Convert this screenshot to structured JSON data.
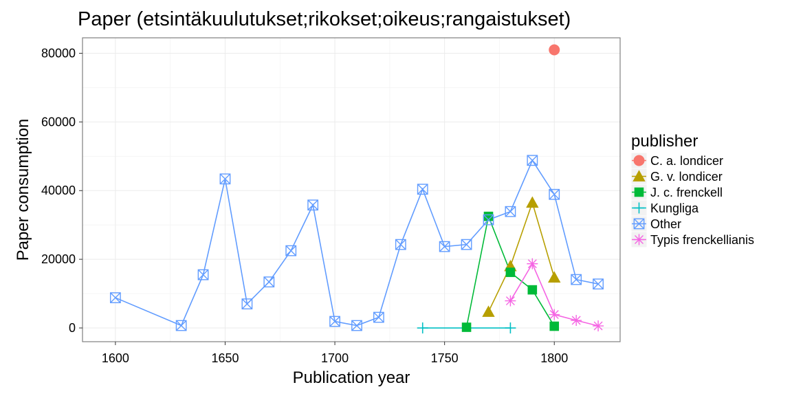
{
  "chart_data": {
    "type": "line",
    "title": "Paper (etsintäkuulutukset;rikokset;oikeus;rangaistukset)",
    "xlabel": "Publication year",
    "ylabel": "Paper consumption",
    "xlim": [
      1585,
      1830
    ],
    "ylim": [
      -4000,
      84500
    ],
    "x_ticks": [
      1600,
      1650,
      1700,
      1750,
      1800
    ],
    "y_ticks": [
      0,
      20000,
      40000,
      60000,
      80000
    ],
    "x_tick_labels": [
      "1600",
      "1650",
      "1700",
      "1750",
      "1800"
    ],
    "y_tick_labels": [
      "0",
      "20000",
      "40000",
      "60000",
      "80000"
    ],
    "grid": true,
    "legend": {
      "title": "publisher",
      "placement": "right"
    },
    "series": [
      {
        "name": "C. a. londicer",
        "color": "#F8766D",
        "shape": "circle",
        "points": [
          [
            1800,
            81000
          ]
        ]
      },
      {
        "name": "G. v. londicer",
        "color": "#B79F00",
        "shape": "triangle",
        "points": [
          [
            1770,
            4700
          ],
          [
            1780,
            18000
          ],
          [
            1790,
            36500
          ],
          [
            1800,
            14700
          ]
        ]
      },
      {
        "name": "J. c. frenckell",
        "color": "#00BA38",
        "shape": "square",
        "points": [
          [
            1760,
            200
          ],
          [
            1770,
            32500
          ],
          [
            1780,
            16200
          ],
          [
            1790,
            11100
          ],
          [
            1800,
            500
          ]
        ]
      },
      {
        "name": "Kungliga",
        "color": "#00BFC4",
        "shape": "plus",
        "points": [
          [
            1740,
            0
          ],
          [
            1780,
            0
          ]
        ]
      },
      {
        "name": "Other",
        "color": "#619CFF",
        "shape": "square-x",
        "points": [
          [
            1600,
            8800
          ],
          [
            1630,
            700
          ],
          [
            1640,
            15500
          ],
          [
            1650,
            43400
          ],
          [
            1660,
            7000
          ],
          [
            1670,
            13400
          ],
          [
            1680,
            22500
          ],
          [
            1690,
            35800
          ],
          [
            1700,
            1900
          ],
          [
            1710,
            700
          ],
          [
            1720,
            3100
          ],
          [
            1730,
            24300
          ],
          [
            1740,
            40400
          ],
          [
            1750,
            23700
          ],
          [
            1760,
            24300
          ],
          [
            1770,
            31500
          ],
          [
            1780,
            33900
          ],
          [
            1790,
            48800
          ],
          [
            1800,
            38900
          ],
          [
            1810,
            14100
          ],
          [
            1820,
            12800
          ]
        ]
      },
      {
        "name": "Typis frenckellianis",
        "color": "#F564E3",
        "shape": "asterisk",
        "points": [
          [
            1780,
            7900
          ],
          [
            1790,
            18700
          ],
          [
            1800,
            3900
          ],
          [
            1810,
            2200
          ],
          [
            1820,
            600
          ]
        ]
      }
    ]
  }
}
